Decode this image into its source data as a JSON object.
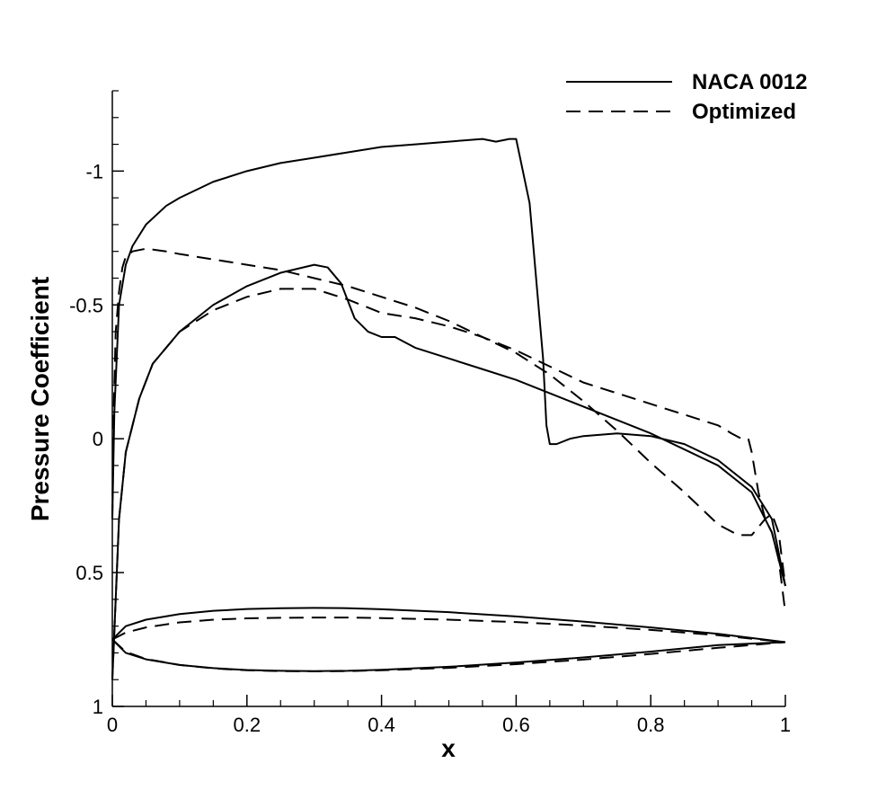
{
  "chart_data": {
    "type": "line",
    "xlabel": "x",
    "ylabel": "Pressure Coefficient",
    "xlim": [
      0,
      1
    ],
    "ylim": [
      1,
      -1.3
    ],
    "y_axis_inverted": true,
    "x_ticks": [
      0,
      0.2,
      0.4,
      0.6,
      0.8,
      1
    ],
    "x_tick_labels": [
      "0",
      "0.2",
      "0.4",
      "0.6",
      "0.8",
      "1"
    ],
    "y_ticks": [
      -1,
      -0.5,
      0,
      0.5,
      1
    ],
    "y_tick_labels": [
      "-1",
      "-0.5",
      "0",
      "0.5",
      "1"
    ],
    "grid": false,
    "legend_position": "top-right",
    "series": [
      {
        "name": "NACA 0012",
        "style": "solid",
        "color": "#000000",
        "segments": [
          {
            "label": "upper surface Cp",
            "x": [
              0.0,
              0.003,
              0.01,
              0.02,
              0.03,
              0.05,
              0.08,
              0.1,
              0.15,
              0.2,
              0.25,
              0.3,
              0.35,
              0.4,
              0.45,
              0.5,
              0.55,
              0.57,
              0.59,
              0.6,
              0.62,
              0.64,
              0.645,
              0.65,
              0.66,
              0.68,
              0.7,
              0.75,
              0.8,
              0.85,
              0.9,
              0.95,
              0.98,
              1.0
            ],
            "y": [
              0.3,
              -0.1,
              -0.5,
              -0.65,
              -0.72,
              -0.8,
              -0.87,
              -0.9,
              -0.96,
              -1.0,
              -1.03,
              -1.05,
              -1.07,
              -1.09,
              -1.1,
              -1.11,
              -1.12,
              -1.11,
              -1.12,
              -1.12,
              -0.88,
              -0.3,
              -0.05,
              0.02,
              0.02,
              0.0,
              -0.01,
              -0.02,
              -0.01,
              0.02,
              0.08,
              0.18,
              0.3,
              0.55
            ]
          },
          {
            "label": "lower surface Cp",
            "x": [
              0.0,
              0.005,
              0.01,
              0.02,
              0.04,
              0.06,
              0.1,
              0.15,
              0.2,
              0.25,
              0.3,
              0.32,
              0.34,
              0.36,
              0.38,
              0.4,
              0.42,
              0.45,
              0.5,
              0.55,
              0.6,
              0.65,
              0.7,
              0.75,
              0.8,
              0.85,
              0.9,
              0.95,
              0.98,
              1.0
            ],
            "y": [
              0.9,
              0.6,
              0.3,
              0.05,
              -0.15,
              -0.28,
              -0.4,
              -0.5,
              -0.57,
              -0.62,
              -0.65,
              -0.64,
              -0.58,
              -0.45,
              -0.4,
              -0.38,
              -0.38,
              -0.34,
              -0.3,
              -0.26,
              -0.22,
              -0.17,
              -0.12,
              -0.07,
              -0.02,
              0.04,
              0.1,
              0.2,
              0.35,
              0.55
            ]
          },
          {
            "label": "airfoil upper contour",
            "x": [
              0.0,
              0.02,
              0.05,
              0.1,
              0.15,
              0.2,
              0.25,
              0.3,
              0.35,
              0.4,
              0.5,
              0.6,
              0.7,
              0.8,
              0.9,
              1.0
            ],
            "y": [
              0.75,
              0.7,
              0.676,
              0.655,
              0.643,
              0.636,
              0.633,
              0.632,
              0.633,
              0.637,
              0.648,
              0.664,
              0.683,
              0.705,
              0.729,
              0.76
            ]
          },
          {
            "label": "airfoil lower contour",
            "x": [
              0.0,
              0.02,
              0.05,
              0.1,
              0.15,
              0.2,
              0.25,
              0.3,
              0.35,
              0.4,
              0.5,
              0.6,
              0.7,
              0.8,
              0.9,
              1.0
            ],
            "y": [
              0.75,
              0.8,
              0.824,
              0.845,
              0.857,
              0.864,
              0.867,
              0.868,
              0.867,
              0.863,
              0.852,
              0.836,
              0.817,
              0.795,
              0.771,
              0.76
            ]
          }
        ]
      },
      {
        "name": "Optimized",
        "style": "dashed",
        "color": "#000000",
        "segments": [
          {
            "label": "upper surface Cp",
            "x": [
              0.0,
              0.002,
              0.005,
              0.01,
              0.015,
              0.02,
              0.03,
              0.05,
              0.08,
              0.1,
              0.15,
              0.2,
              0.25,
              0.3,
              0.35,
              0.4,
              0.45,
              0.5,
              0.55,
              0.6,
              0.65,
              0.7,
              0.75,
              0.8,
              0.85,
              0.9,
              0.92,
              0.935,
              0.945,
              0.95,
              0.96,
              0.97,
              0.98,
              0.99,
              1.0
            ],
            "y": [
              0.3,
              -0.1,
              -0.4,
              -0.55,
              -0.64,
              -0.68,
              -0.7,
              -0.71,
              -0.7,
              -0.69,
              -0.67,
              -0.65,
              -0.63,
              -0.6,
              -0.57,
              -0.53,
              -0.49,
              -0.44,
              -0.38,
              -0.33,
              -0.27,
              -0.21,
              -0.17,
              -0.13,
              -0.09,
              -0.05,
              -0.02,
              0.0,
              0.0,
              0.05,
              0.2,
              0.3,
              0.35,
              0.45,
              0.65
            ]
          },
          {
            "label": "lower surface Cp",
            "x": [
              0.0,
              0.005,
              0.01,
              0.02,
              0.04,
              0.06,
              0.1,
              0.15,
              0.2,
              0.25,
              0.3,
              0.35,
              0.4,
              0.45,
              0.5,
              0.55,
              0.6,
              0.65,
              0.7,
              0.75,
              0.8,
              0.85,
              0.9,
              0.93,
              0.95,
              0.97,
              0.98,
              0.99,
              1.0
            ],
            "y": [
              0.9,
              0.6,
              0.3,
              0.05,
              -0.15,
              -0.28,
              -0.4,
              -0.48,
              -0.53,
              -0.56,
              -0.56,
              -0.52,
              -0.47,
              -0.45,
              -0.42,
              -0.38,
              -0.32,
              -0.24,
              -0.14,
              -0.03,
              0.09,
              0.2,
              0.32,
              0.36,
              0.36,
              0.3,
              0.28,
              0.35,
              0.55
            ]
          },
          {
            "label": "airfoil upper contour",
            "x": [
              0.0,
              0.02,
              0.05,
              0.1,
              0.15,
              0.2,
              0.25,
              0.3,
              0.35,
              0.4,
              0.5,
              0.6,
              0.7,
              0.8,
              0.9,
              1.0
            ],
            "y": [
              0.75,
              0.724,
              0.705,
              0.686,
              0.676,
              0.671,
              0.669,
              0.668,
              0.668,
              0.67,
              0.676,
              0.685,
              0.698,
              0.714,
              0.734,
              0.76
            ]
          },
          {
            "label": "airfoil lower contour",
            "x": [
              0.0,
              0.02,
              0.05,
              0.1,
              0.15,
              0.2,
              0.25,
              0.3,
              0.35,
              0.4,
              0.5,
              0.6,
              0.7,
              0.8,
              0.9,
              1.0
            ],
            "y": [
              0.75,
              0.796,
              0.823,
              0.845,
              0.858,
              0.865,
              0.868,
              0.869,
              0.868,
              0.865,
              0.856,
              0.842,
              0.825,
              0.804,
              0.781,
              0.76
            ]
          }
        ]
      }
    ]
  }
}
